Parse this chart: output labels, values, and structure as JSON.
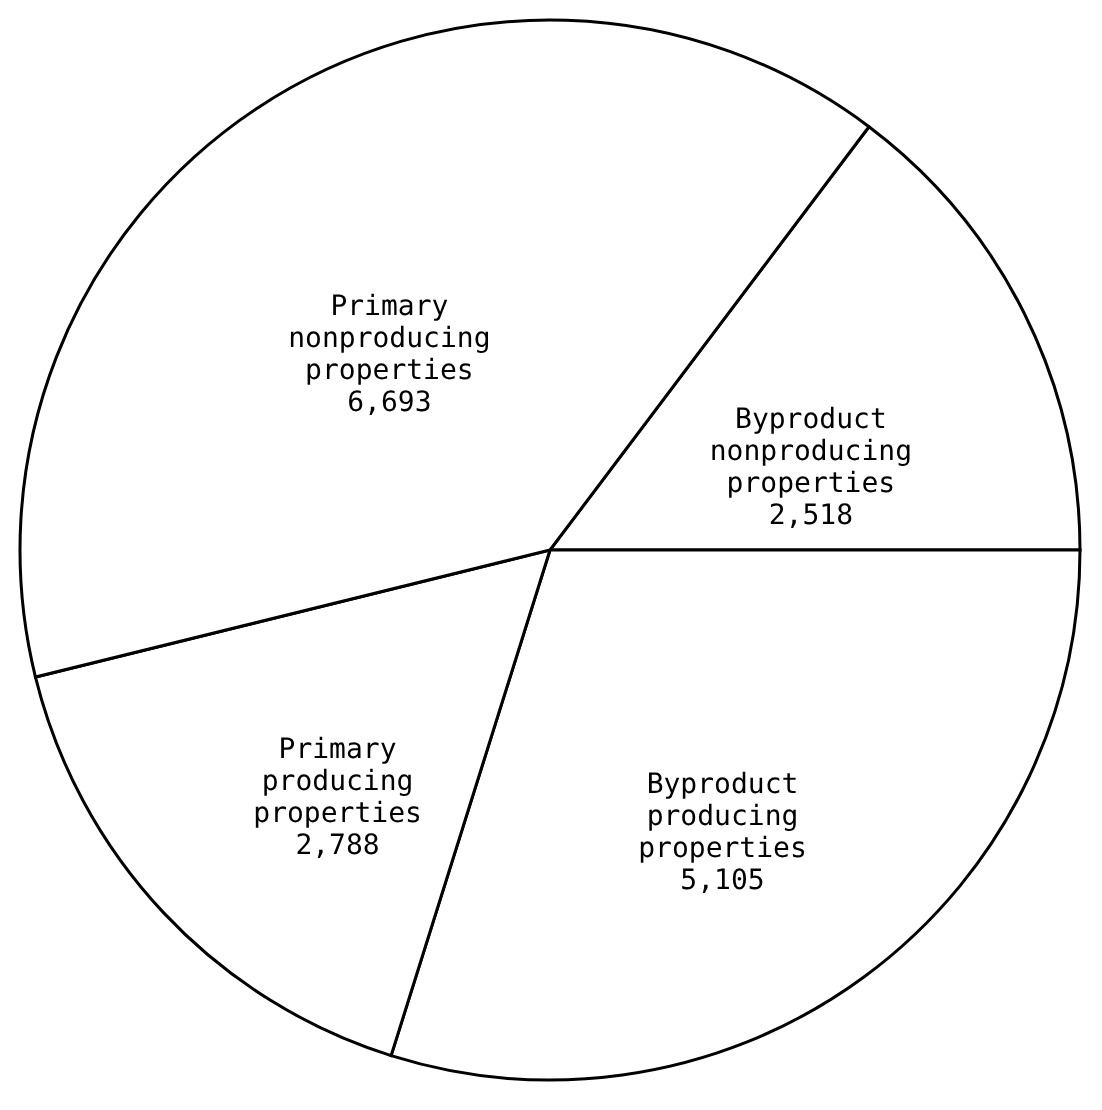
{
  "chart_data": {
    "type": "pie",
    "categories": [
      "Byproduct nonproducing properties",
      "Byproduct producing properties",
      "Primary producing properties",
      "Primary nonproducing properties"
    ],
    "values": [
      2518,
      5105,
      2788,
      6693
    ],
    "colors": [
      "#ffffff",
      "#ffffff",
      "#ffffff",
      "#ffffff"
    ],
    "value_labels": [
      "2,518",
      "5,105",
      "2,788",
      "6,693"
    ],
    "legend": false
  }
}
